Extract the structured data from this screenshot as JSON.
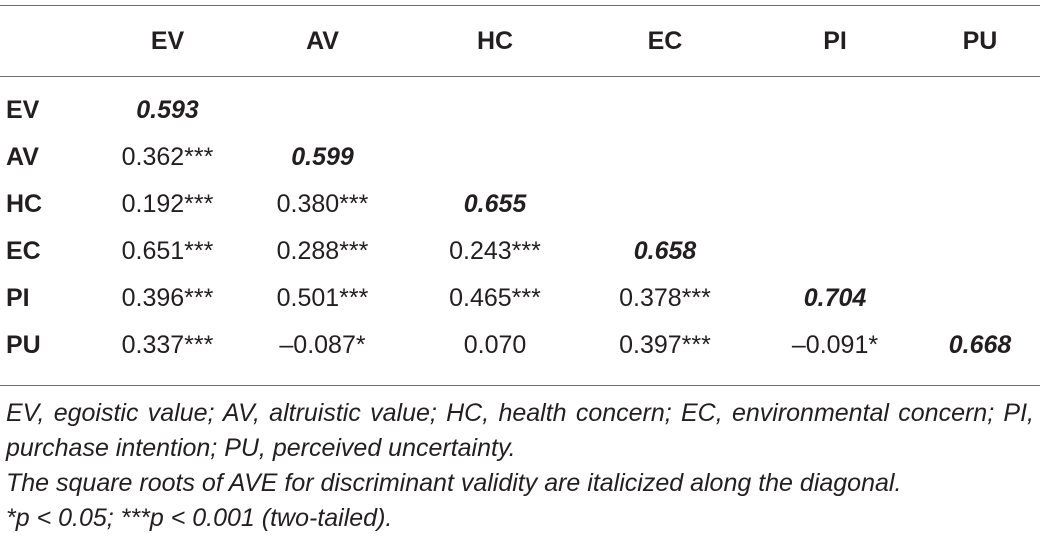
{
  "table": {
    "columns": [
      "",
      "EV",
      "AV",
      "HC",
      "EC",
      "PI",
      "PU"
    ],
    "rows": [
      {
        "label": "EV",
        "cells": [
          "0.593",
          "",
          "",
          "",
          "",
          ""
        ]
      },
      {
        "label": "AV",
        "cells": [
          "0.362***",
          "0.599",
          "",
          "",
          "",
          ""
        ]
      },
      {
        "label": "HC",
        "cells": [
          "0.192***",
          "0.380***",
          "0.655",
          "",
          "",
          ""
        ]
      },
      {
        "label": "EC",
        "cells": [
          "0.651***",
          "0.288***",
          "0.243***",
          "0.658",
          "",
          ""
        ]
      },
      {
        "label": "PI",
        "cells": [
          "0.396***",
          "0.501***",
          "0.465***",
          "0.378***",
          "0.704",
          ""
        ]
      },
      {
        "label": "PU",
        "cells": [
          "0.337***",
          "–0.087*",
          "0.070",
          "0.397***",
          "–0.091*",
          "0.668"
        ]
      }
    ]
  },
  "notes": {
    "abbreviations": "EV, egoistic value; AV, altruistic value; HC, health concern; EC, environmental concern; PI, purchase intention; PU, perceived uncertainty.",
    "diagonal": "The square roots of AVE for discriminant validity are italicized along the diagonal.",
    "significance": "*p < 0.05; ***p < 0.001 (two-tailed)."
  }
}
